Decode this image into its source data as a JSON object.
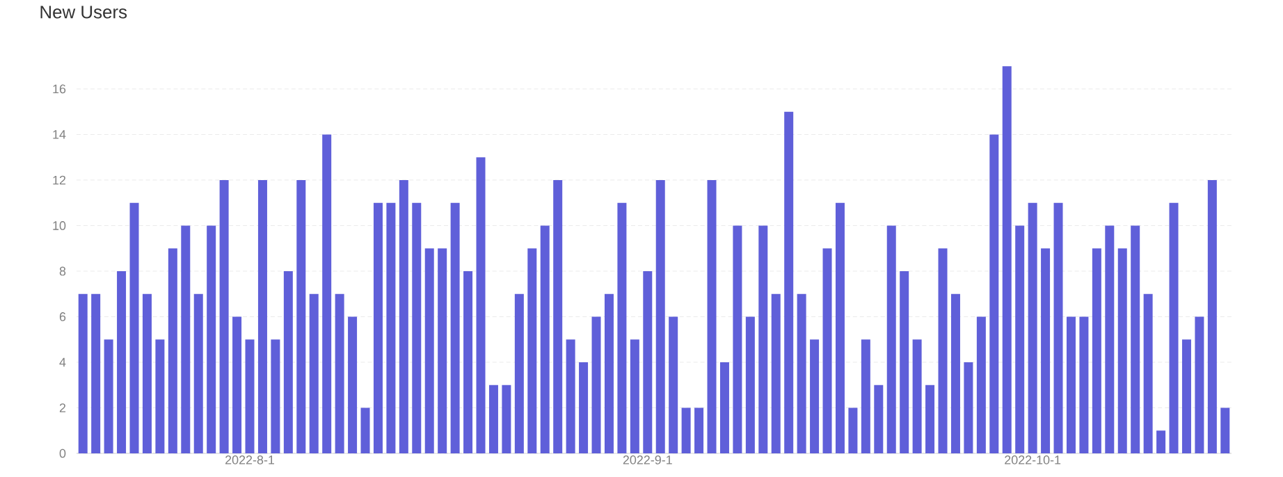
{
  "chart_data": {
    "type": "bar",
    "title": "New Users",
    "categories": [
      null,
      null,
      null,
      null,
      null,
      null,
      null,
      null,
      null,
      null,
      null,
      null,
      null,
      "2022-8-1",
      null,
      null,
      null,
      null,
      null,
      null,
      null,
      null,
      null,
      null,
      null,
      null,
      null,
      null,
      null,
      null,
      null,
      null,
      null,
      null,
      null,
      null,
      null,
      null,
      null,
      null,
      null,
      null,
      null,
      null,
      "2022-9-1",
      null,
      null,
      null,
      null,
      null,
      null,
      null,
      null,
      null,
      null,
      null,
      null,
      null,
      null,
      null,
      null,
      null,
      null,
      null,
      null,
      null,
      null,
      null,
      null,
      null,
      null,
      null,
      null,
      null,
      "2022-10-1",
      null,
      null,
      null,
      null,
      null,
      null,
      null,
      null,
      null,
      null,
      null,
      null,
      null,
      null,
      null
    ],
    "values": [
      7,
      7,
      5,
      8,
      11,
      7,
      5,
      9,
      10,
      7,
      10,
      12,
      6,
      5,
      12,
      5,
      8,
      12,
      7,
      14,
      7,
      6,
      2,
      11,
      11,
      12,
      11,
      9,
      9,
      11,
      8,
      13,
      3,
      3,
      7,
      9,
      10,
      12,
      5,
      4,
      6,
      7,
      11,
      5,
      8,
      12,
      6,
      2,
      2,
      12,
      4,
      10,
      6,
      10,
      7,
      15,
      7,
      5,
      9,
      11,
      2,
      5,
      3,
      10,
      8,
      5,
      3,
      9,
      7,
      4,
      6,
      14,
      17,
      10,
      11,
      9,
      11,
      6,
      6,
      9,
      10,
      9,
      10,
      7,
      1,
      11,
      5,
      6,
      12,
      2
    ],
    "color": "#5f5fd9",
    "ylim": [
      0,
      17
    ],
    "yticks": [
      0,
      2,
      4,
      6,
      8,
      10,
      12,
      14,
      16
    ],
    "grid": "y"
  }
}
